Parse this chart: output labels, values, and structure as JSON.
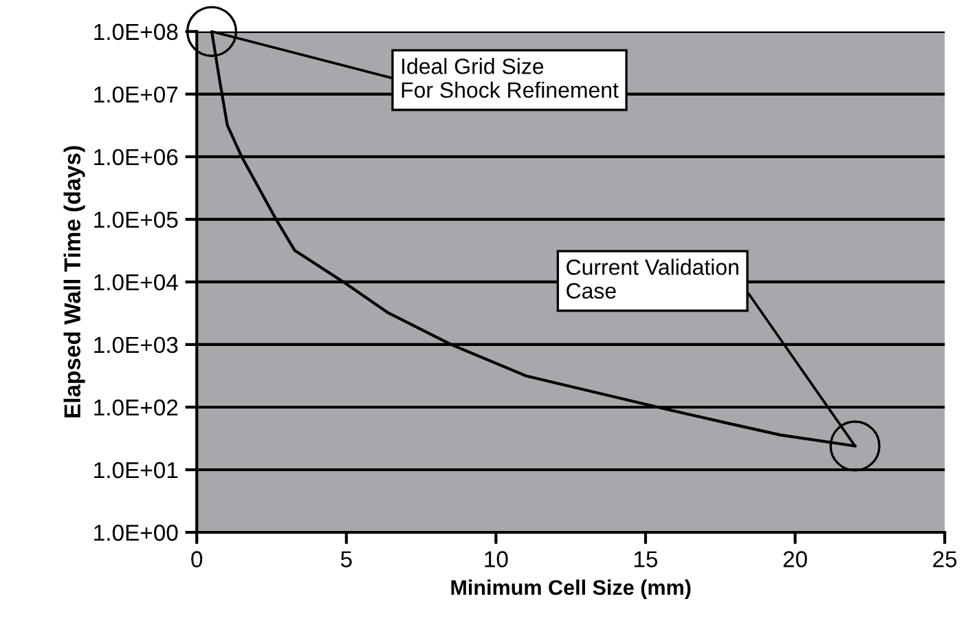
{
  "chart_data": {
    "type": "line",
    "xlabel": "Minimum Cell Size (mm)",
    "ylabel": "Elapsed Wall Time (days)",
    "x": [
      0.5,
      0.77,
      1.02,
      1.5,
      2.65,
      3.27,
      4.9,
      6.4,
      8.5,
      11.0,
      15.6,
      17.7,
      19.5,
      22.0
    ],
    "series": [
      {
        "color": "#000000",
        "values": [
          100000000,
          16000000,
          3200000,
          1000000,
          100000,
          32000,
          10000,
          3200,
          1000,
          316,
          95,
          56,
          36,
          24
        ]
      }
    ],
    "log": "y",
    "xlim": [
      0,
      25
    ],
    "xticks": [
      0,
      5,
      10,
      15,
      20,
      25
    ],
    "ylim": [
      1,
      100000000
    ],
    "yticks": [
      {
        "value": 1,
        "label": "1.0E+00"
      },
      {
        "value": 10,
        "label": "1.0E+01"
      },
      {
        "value": 100,
        "label": "1.0E+02"
      },
      {
        "value": 1000,
        "label": "1.0E+03"
      },
      {
        "value": 10000,
        "label": "1.0E+04"
      },
      {
        "value": 100000,
        "label": "1.0E+05"
      },
      {
        "value": 1000000,
        "label": "1.0E+06"
      },
      {
        "value": 10000000,
        "label": "1.0E+07"
      },
      {
        "value": 100000000,
        "label": "1.0E+08"
      }
    ],
    "grid": "y",
    "marker": "none",
    "line_style": "solid",
    "legend": false,
    "annotations": [
      {
        "text": "Ideal Grid Size\nFor Shock Refinement",
        "x": 0.5,
        "y": 100000000
      },
      {
        "text": "Current Validation\nCase",
        "x": 22.0,
        "y": 24
      }
    ]
  }
}
